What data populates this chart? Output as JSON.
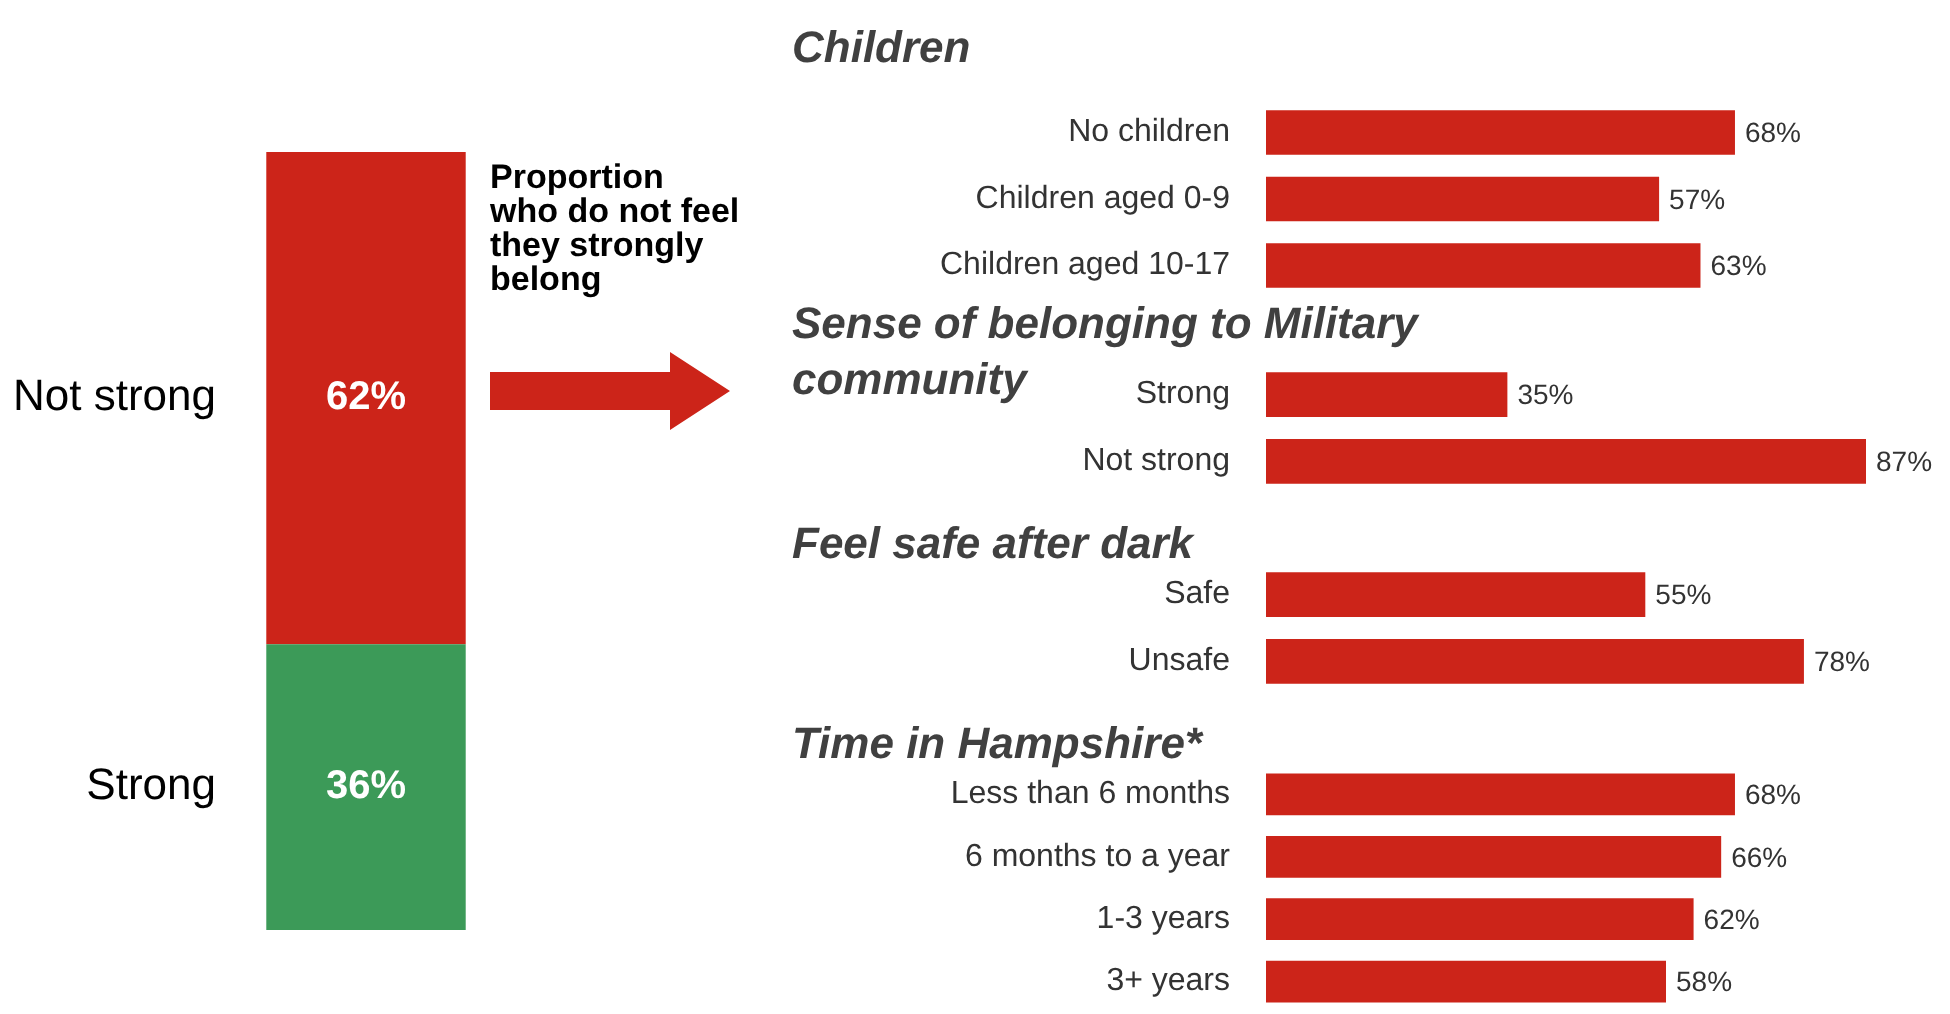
{
  "chart_data": [
    {
      "type": "bar",
      "stacked": true,
      "categories": [
        null
      ],
      "tick_labels": false,
      "annotations": [
        "Proportion who do not feel they strongly belong"
      ],
      "series": [
        {
          "name": "Strong",
          "color": "#3c9a58",
          "values": [
            36
          ],
          "value_labels": [
            "36%"
          ]
        },
        {
          "name": "Not strong",
          "color": "#cc2419",
          "values": [
            62
          ],
          "value_labels": [
            "62%"
          ]
        }
      ]
    },
    {
      "type": "bar",
      "orientation": "horizontal",
      "title": "Children",
      "categories": [
        "No children",
        "Children aged 0-9",
        "Children aged 10-17"
      ],
      "values": [
        68,
        57,
        63
      ],
      "value_labels": [
        "68%",
        "57%",
        "63%"
      ],
      "color": "#cc2419",
      "tick_labels": "y"
    },
    {
      "type": "bar",
      "orientation": "horizontal",
      "title": "Sense of belonging to Military community",
      "categories": [
        "Strong",
        "Not strong"
      ],
      "values": [
        35,
        87
      ],
      "value_labels": [
        "35%",
        "87%"
      ],
      "color": "#cc2419",
      "tick_labels": "y"
    },
    {
      "type": "bar",
      "orientation": "horizontal",
      "title": "Feel safe after dark",
      "categories": [
        "Safe",
        "Unsafe"
      ],
      "values": [
        55,
        78
      ],
      "value_labels": [
        "55%",
        "78%"
      ],
      "color": "#cc2419",
      "tick_labels": "y"
    },
    {
      "type": "bar",
      "orientation": "horizontal",
      "title": "Time in Hampshire*",
      "categories": [
        "Less than 6 months",
        "6 months to a year",
        "1-3 years",
        "3+ years"
      ],
      "values": [
        68,
        66,
        62,
        58
      ],
      "value_labels": [
        "68%",
        "66%",
        "62%",
        "58%"
      ],
      "color": "#cc2419",
      "tick_labels": "y"
    }
  ]
}
